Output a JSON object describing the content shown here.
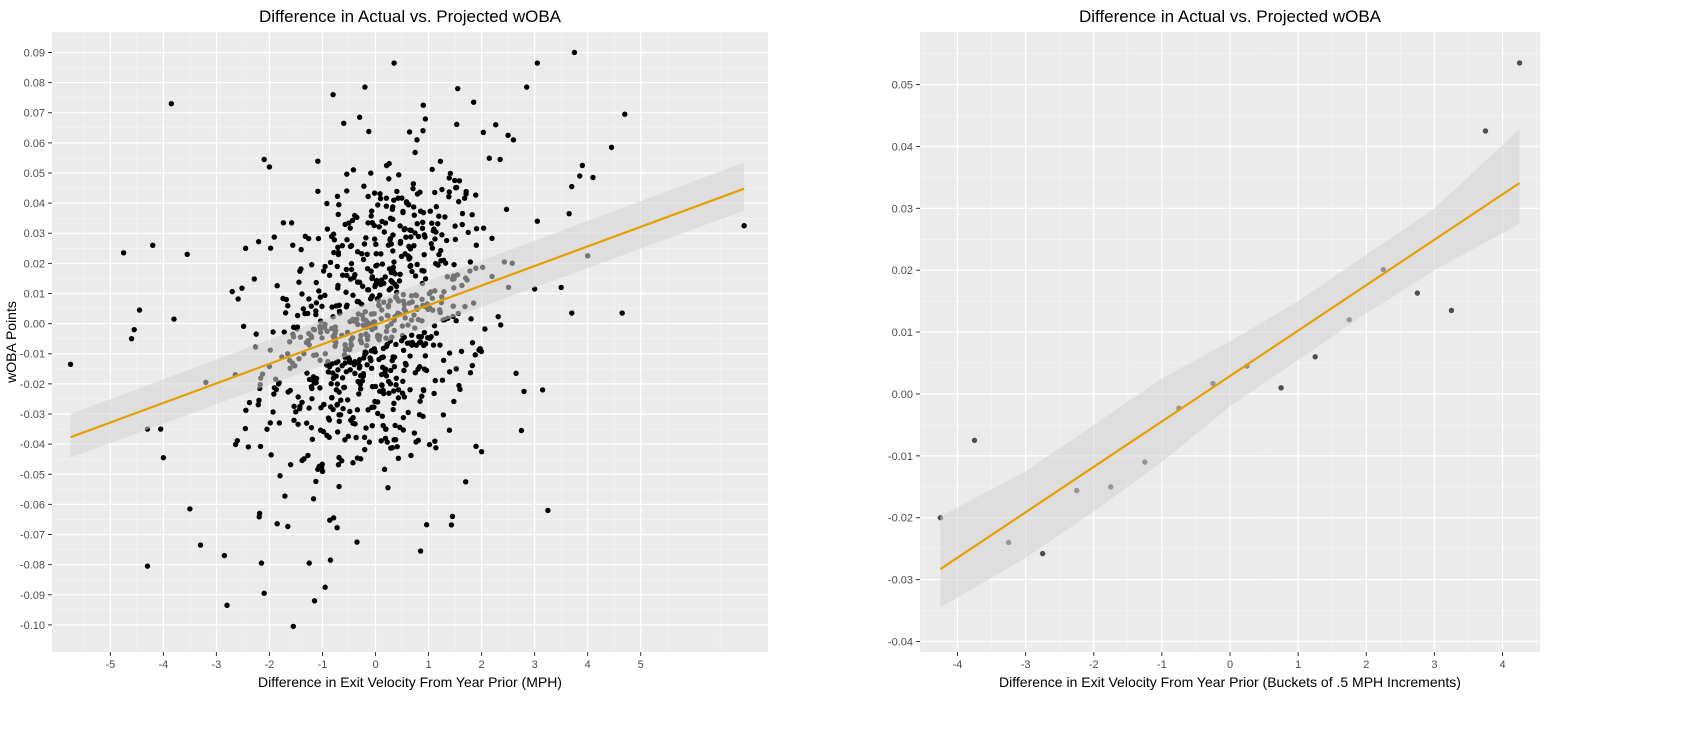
{
  "chart_data": [
    {
      "type": "scatter",
      "title": "Difference in Actual vs. Projected wOBA",
      "xlabel": "Difference in Exit Velocity From Year Prior (MPH)",
      "ylabel": "wOBA Points",
      "xlim": [
        -6.1,
        7.4
      ],
      "ylim": [
        -0.109,
        0.0968
      ],
      "xticks": [
        -5,
        -4,
        -3,
        -2,
        -1,
        0,
        1,
        2,
        3,
        4,
        5
      ],
      "xtick_labels": [
        "-5",
        "-4",
        "-3",
        "-2",
        "-1",
        "0",
        "1",
        "2",
        "3",
        "4",
        "5"
      ],
      "yticks": [
        -0.1,
        -0.09,
        -0.08,
        -0.07,
        -0.06,
        -0.05,
        -0.04,
        -0.03,
        -0.02,
        -0.01,
        0.0,
        0.01,
        0.02,
        0.03,
        0.04,
        0.05,
        0.06,
        0.07,
        0.08,
        0.09
      ],
      "ytick_labels": [
        "-0.10",
        "-0.09",
        "-0.08",
        "-0.07",
        "-0.06",
        "-0.05",
        "-0.04",
        "-0.03",
        "-0.02",
        "-0.01",
        "0.00",
        "0.01",
        "0.02",
        "0.03",
        "0.04",
        "0.05",
        "0.06",
        "0.07",
        "0.08",
        "0.09"
      ],
      "grid": true,
      "points_visible": [
        [
          -5.75,
          -0.0135
        ],
        [
          -4.75,
          0.0235
        ],
        [
          -4.55,
          -0.002
        ],
        [
          -4.6,
          -0.005
        ],
        [
          -4.45,
          0.0045
        ],
        [
          -4.3,
          -0.0805
        ],
        [
          -4.3,
          -0.035
        ],
        [
          -4.2,
          0.026
        ],
        [
          -4.05,
          -0.035
        ],
        [
          -4.0,
          -0.0445
        ],
        [
          -3.85,
          0.073
        ],
        [
          -3.8,
          0.0015
        ],
        [
          -3.55,
          0.023
        ],
        [
          -3.5,
          -0.0615
        ],
        [
          -3.3,
          -0.0735
        ],
        [
          -2.85,
          -0.077
        ],
        [
          -2.8,
          -0.0935
        ],
        [
          -3.2,
          -0.0195
        ],
        [
          -2.45,
          0.025
        ],
        [
          -2.1,
          0.0545
        ],
        [
          -2.0,
          0.052
        ],
        [
          -2.15,
          -0.0795
        ],
        [
          -2.1,
          -0.0895
        ],
        [
          -1.8,
          -0.0505
        ],
        [
          -1.55,
          -0.1005
        ],
        [
          -1.25,
          -0.0795
        ],
        [
          -1.15,
          -0.092
        ],
        [
          -0.95,
          -0.0875
        ],
        [
          -0.85,
          -0.0785
        ],
        [
          -0.8,
          0.076
        ],
        [
          -0.6,
          0.0665
        ],
        [
          -0.2,
          0.0785
        ],
        [
          -0.35,
          -0.0725
        ],
        [
          -0.3,
          0.0685
        ],
        [
          0.35,
          0.0865
        ],
        [
          0.85,
          -0.0755
        ],
        [
          0.9,
          0.0725
        ],
        [
          1.55,
          0.078
        ],
        [
          1.85,
          0.0735
        ],
        [
          2.0,
          -0.0425
        ],
        [
          1.7,
          -0.0525
        ],
        [
          1.45,
          -0.064
        ],
        [
          2.35,
          0.0545
        ],
        [
          2.5,
          0.0625
        ],
        [
          2.6,
          0.061
        ],
        [
          2.85,
          0.0785
        ],
        [
          3.05,
          0.0865
        ],
        [
          3.25,
          -0.062
        ],
        [
          3.0,
          0.0115
        ],
        [
          3.05,
          0.034
        ],
        [
          2.75,
          -0.0355
        ],
        [
          2.8,
          -0.0225
        ],
        [
          2.65,
          -0.0165
        ],
        [
          3.15,
          -0.022
        ],
        [
          3.5,
          0.012
        ],
        [
          3.7,
          0.0035
        ],
        [
          3.65,
          0.0365
        ],
        [
          3.7,
          0.0455
        ],
        [
          3.85,
          0.049
        ],
        [
          3.9,
          0.0525
        ],
        [
          3.75,
          0.09
        ],
        [
          4.0,
          0.0225
        ],
        [
          4.1,
          0.0485
        ],
        [
          4.45,
          0.0585
        ],
        [
          4.65,
          0.0035
        ],
        [
          4.7,
          0.0695
        ],
        [
          6.95,
          0.0325
        ]
      ],
      "fit_line": {
        "x": [
          -5.75,
          6.95
        ],
        "y": [
          -0.0377,
          0.0448
        ]
      },
      "confidence_band": {
        "x": [
          -5.75,
          6.95
        ],
        "lower": [
          -0.0445,
          0.0375
        ],
        "upper": [
          -0.03,
          0.0535
        ]
      },
      "colors": {
        "panel": "#ebebeb",
        "grid": "#ffffff",
        "points": "#000000",
        "fit": "#e69f00",
        "band": "#d4d4d4"
      }
    },
    {
      "type": "scatter",
      "title": "Difference in Actual vs. Projected wOBA",
      "xlabel": "Difference in Exit Velocity From Year Prior (Buckets of .5 MPH Increments)",
      "ylabel": "wOBA Points",
      "xlim": [
        -4.55,
        4.55
      ],
      "ylim": [
        -0.0417,
        0.0585
      ],
      "xticks": [
        -4,
        -3,
        -2,
        -1,
        0,
        1,
        2,
        3,
        4
      ],
      "xtick_labels": [
        "-4",
        "-3",
        "-2",
        "-1",
        "0",
        "1",
        "2",
        "3",
        "4"
      ],
      "yticks": [
        -0.04,
        -0.03,
        -0.02,
        -0.01,
        0.0,
        0.01,
        0.02,
        0.03,
        0.04,
        0.05
      ],
      "ytick_labels": [
        "-0.04",
        "-0.03",
        "-0.02",
        "-0.01",
        "0.00",
        "0.01",
        "0.02",
        "0.03",
        "0.04",
        "0.05"
      ],
      "grid": true,
      "points": [
        [
          -4.25,
          -0.02
        ],
        [
          -3.75,
          -0.0075
        ],
        [
          -3.25,
          -0.024
        ],
        [
          -2.75,
          -0.0258
        ],
        [
          -2.25,
          -0.0156
        ],
        [
          -1.75,
          -0.015
        ],
        [
          -1.25,
          -0.011
        ],
        [
          -0.75,
          -0.0023
        ],
        [
          -0.25,
          0.0017
        ],
        [
          0.25,
          0.0045
        ],
        [
          0.75,
          0.001
        ],
        [
          1.25,
          0.006
        ],
        [
          1.75,
          0.012
        ],
        [
          2.25,
          0.0201
        ],
        [
          2.75,
          0.0163
        ],
        [
          3.25,
          0.0135
        ],
        [
          3.75,
          0.0425
        ],
        [
          4.25,
          0.0535
        ]
      ],
      "fit_line": {
        "x": [
          -4.25,
          4.25
        ],
        "y": [
          -0.0283,
          0.0341
        ]
      },
      "confidence_band": {
        "x": [
          -4.25,
          -3.0,
          -2.0,
          -1.0,
          0.0,
          1.0,
          2.0,
          3.0,
          4.25
        ],
        "lower": [
          -0.0345,
          -0.0265,
          -0.019,
          -0.011,
          -0.002,
          0.0055,
          0.013,
          0.02,
          0.0275
        ],
        "upper": [
          -0.0198,
          -0.0125,
          -0.005,
          0.0025,
          0.0085,
          0.015,
          0.0225,
          0.03,
          0.0428
        ]
      },
      "colors": {
        "panel": "#ebebeb",
        "grid": "#ffffff",
        "points": "#4d4d4d",
        "fit": "#e69f00",
        "band": "#d4d4d4"
      }
    }
  ]
}
